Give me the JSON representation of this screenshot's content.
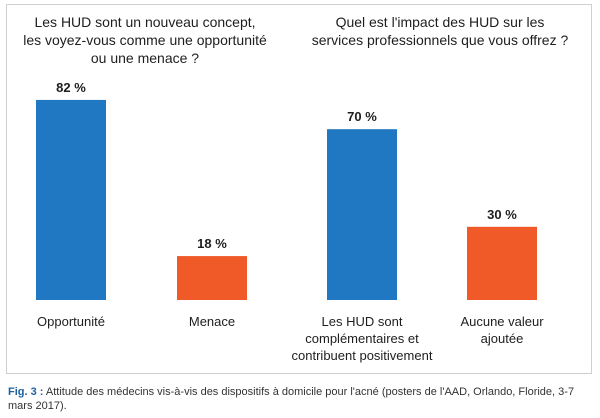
{
  "titles": {
    "left": [
      "Les HUD sont un nouveau concept,",
      "les voyez-vous comme une opportunité",
      "ou une menace ?"
    ],
    "right": [
      "Quel est l'impact des HUD sur les",
      "services professionnels que vous offrez ?"
    ]
  },
  "caption": {
    "label": "Fig. 3 :",
    "text": " Attitude des médecins vis-à-vis des dispositifs à domicile pour l'acné (posters de l'AAD, Orlando, Floride, 3-7 mars 2017)."
  },
  "colors": {
    "blue": "#1f78c1",
    "orange": "#f05a28"
  },
  "chart_data": [
    {
      "type": "bar",
      "title": "Les HUD sont un nouveau concept, les voyez-vous comme une opportunité ou une menace ?",
      "categories": [
        [
          "Opportunité"
        ],
        [
          "Menace"
        ]
      ],
      "values": [
        82,
        18
      ],
      "value_labels": [
        "82 %",
        "18 %"
      ],
      "bar_colors": [
        "#1f78c1",
        "#f05a28"
      ],
      "ylim": [
        0,
        100
      ],
      "grid": false
    },
    {
      "type": "bar",
      "title": "Quel est l'impact des HUD sur les services professionnels que vous offrez ?",
      "categories": [
        [
          "Les HUD sont",
          "complémentaires et",
          "contribuent positivement"
        ],
        [
          "Aucune valeur",
          "ajoutée"
        ]
      ],
      "values": [
        70,
        30
      ],
      "value_labels": [
        "70 %",
        "30 %"
      ],
      "bar_colors": [
        "#1f78c1",
        "#f05a28"
      ],
      "ylim": [
        0,
        100
      ],
      "grid": false
    }
  ]
}
